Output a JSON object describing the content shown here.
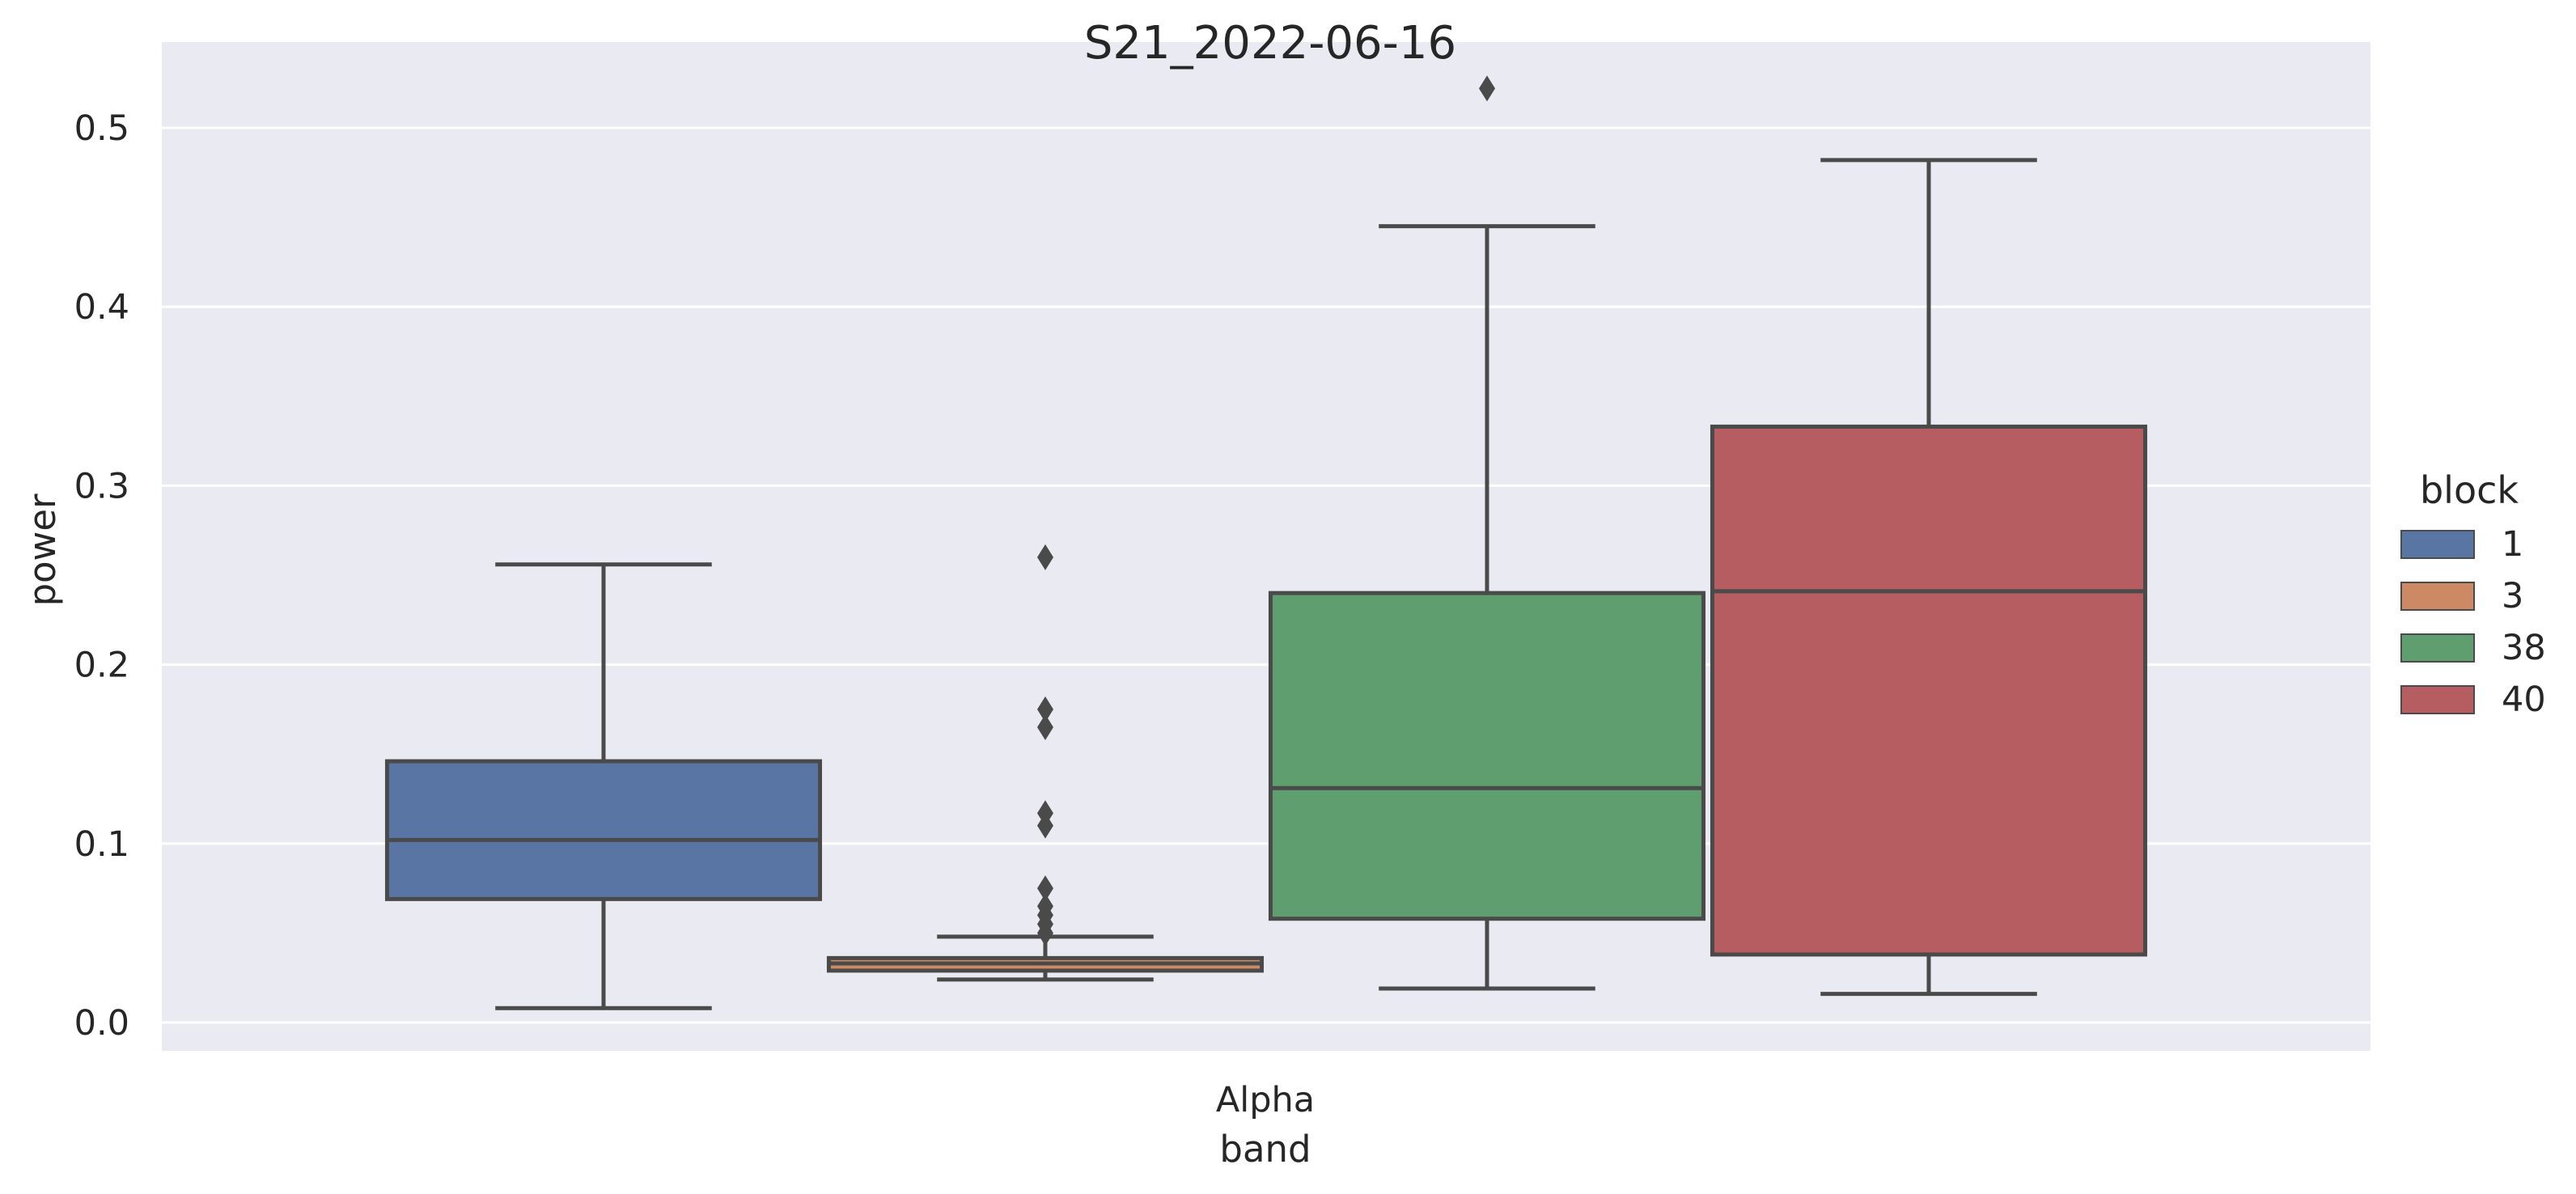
{
  "chart_data": {
    "type": "box",
    "title": "S21_2022-06-16",
    "xlabel": "band",
    "ylabel": "power",
    "categories": [
      "Alpha"
    ],
    "ylim": [
      -0.017,
      0.55
    ],
    "yticks": [
      0.0,
      0.1,
      0.2,
      0.3,
      0.4,
      0.5
    ],
    "ytick_labels": [
      "0.0",
      "0.1",
      "0.2",
      "0.3",
      "0.4",
      "0.5"
    ],
    "grid": true,
    "legend": {
      "title": "block",
      "placement": "center-right outside"
    },
    "series": [
      {
        "name": "1",
        "color": "#5875a4",
        "whisker_low": 0.008,
        "q1": 0.069,
        "median": 0.102,
        "q3": 0.146,
        "whisker_high": 0.256,
        "outliers": []
      },
      {
        "name": "3",
        "color": "#cc8963",
        "whisker_low": 0.024,
        "q1": 0.029,
        "median": 0.033,
        "q3": 0.036,
        "whisker_high": 0.048,
        "outliers": [
          0.05,
          0.055,
          0.06,
          0.065,
          0.075,
          0.11,
          0.117,
          0.165,
          0.175,
          0.26
        ]
      },
      {
        "name": "38",
        "color": "#5f9e6e",
        "whisker_low": 0.019,
        "q1": 0.058,
        "median": 0.131,
        "q3": 0.24,
        "whisker_high": 0.445,
        "outliers": [
          0.522
        ]
      },
      {
        "name": "40",
        "color": "#b55d60",
        "whisker_low": 0.016,
        "q1": 0.038,
        "median": 0.241,
        "q3": 0.333,
        "whisker_high": 0.482,
        "outliers": []
      }
    ]
  }
}
